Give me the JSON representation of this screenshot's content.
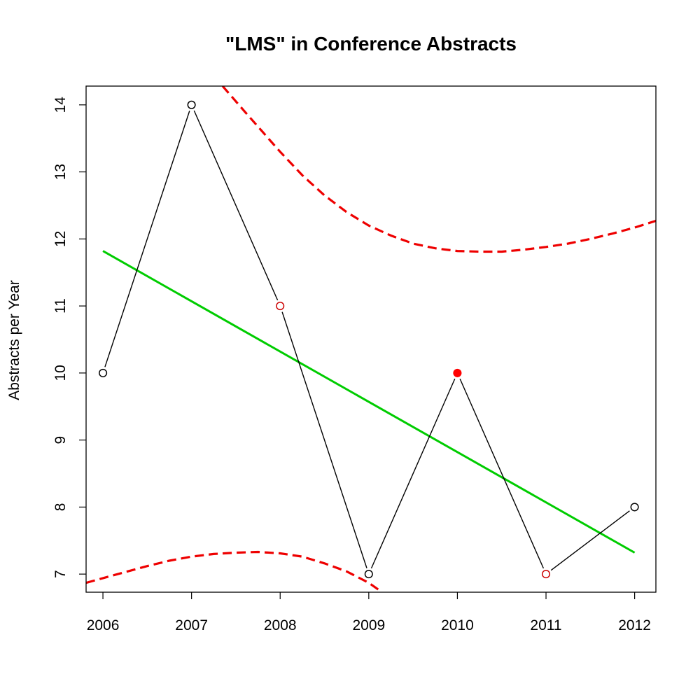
{
  "chart_data": {
    "type": "line",
    "title": "\"LMS\" in Conference Abstracts",
    "xlabel": "",
    "ylabel": "Abstracts per Year",
    "x": [
      2006,
      2007,
      2008,
      2009,
      2010,
      2011,
      2012
    ],
    "xlim": [
      2005.81,
      2012.24
    ],
    "ylim": [
      6.73,
      14.28
    ],
    "xticks": [
      "2006",
      "2007",
      "2008",
      "2009",
      "2010",
      "2011",
      "2012"
    ],
    "yticks": [
      "7",
      "8",
      "9",
      "10",
      "11",
      "12",
      "13",
      "14"
    ],
    "series": [
      {
        "values": [
          10,
          14,
          11,
          7,
          10,
          7,
          8
        ],
        "line_color": "#000000",
        "marker_colors": [
          "#000000",
          "#000000",
          "#cc0000",
          "#000000",
          "#ff0000",
          "#cc0000",
          "#000000"
        ],
        "marker_filled": [
          false,
          false,
          false,
          false,
          true,
          false,
          false
        ]
      }
    ],
    "trend_line": {
      "x": [
        2006,
        2012
      ],
      "values": [
        11.82,
        7.32
      ],
      "color": "#00cc00"
    },
    "upper_band": {
      "x": [
        2007.35,
        2007.6,
        2007.8,
        2008.0,
        2008.25,
        2008.5,
        2008.75,
        2009.0,
        2009.25,
        2009.5,
        2009.75,
        2010.0,
        2010.25,
        2010.5,
        2010.75,
        2011.0,
        2011.25,
        2011.5,
        2011.75,
        2012.0,
        2012.24
      ],
      "values": [
        14.28,
        13.9,
        13.6,
        13.3,
        12.95,
        12.65,
        12.4,
        12.2,
        12.05,
        11.93,
        11.86,
        11.82,
        11.81,
        11.81,
        11.84,
        11.88,
        11.93,
        12.0,
        12.08,
        12.17,
        12.27
      ],
      "color": "#ee0000"
    },
    "lower_band": {
      "x": [
        2005.81,
        2006.0,
        2006.25,
        2006.5,
        2006.75,
        2007.0,
        2007.25,
        2007.5,
        2007.75,
        2008.0,
        2008.25,
        2008.5,
        2008.75,
        2009.0,
        2009.15
      ],
      "values": [
        6.87,
        6.94,
        7.03,
        7.12,
        7.2,
        7.26,
        7.3,
        7.32,
        7.33,
        7.31,
        7.26,
        7.16,
        7.04,
        6.87,
        6.73
      ],
      "color": "#ee0000"
    },
    "grid": false,
    "legend": "none"
  }
}
